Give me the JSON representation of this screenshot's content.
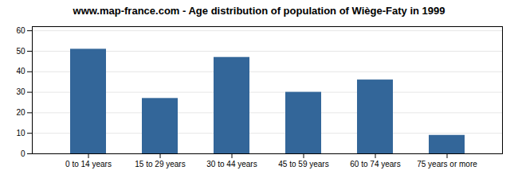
{
  "chart_data": {
    "type": "bar",
    "title": "www.map-france.com - Age distribution of population of Wiège-Faty in 1999",
    "categories": [
      "0 to 14 years",
      "15 to 29 years",
      "30 to 44 years",
      "45 to 59 years",
      "60 to 74 years",
      "75 years or more"
    ],
    "values": [
      51,
      27,
      47,
      30,
      36,
      9
    ],
    "color": "#336699",
    "ylim": [
      0,
      62
    ],
    "yticks": [
      0,
      10,
      20,
      30,
      40,
      50,
      60
    ],
    "grid": true
  }
}
